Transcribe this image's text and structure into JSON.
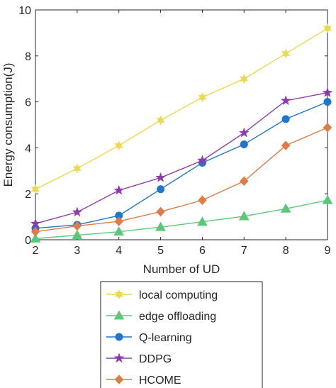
{
  "chart_data": {
    "type": "line",
    "title": "",
    "xlabel": "Number of UD",
    "ylabel": "Energy consumption(J)",
    "xlim": [
      2,
      9
    ],
    "ylim": [
      0,
      10
    ],
    "x_ticks": [
      "2",
      "3",
      "4",
      "5",
      "6",
      "7",
      "8",
      "9"
    ],
    "y_ticks": [
      "0",
      "2",
      "4",
      "6",
      "8",
      "10"
    ],
    "x": [
      2,
      3,
      4,
      5,
      6,
      7,
      8,
      9
    ],
    "grid": false,
    "legend_position": "below",
    "series": [
      {
        "name": "local computing",
        "color": "#edd94f",
        "marker": "hexagram",
        "values": [
          2.2,
          3.1,
          4.1,
          5.2,
          6.2,
          7.0,
          8.1,
          9.2
        ]
      },
      {
        "name": "edge offloading",
        "color": "#5bc879",
        "marker": "triangle",
        "values": [
          0.05,
          0.2,
          0.35,
          0.55,
          0.78,
          1.02,
          1.35,
          1.72
        ]
      },
      {
        "name": "Q-learning",
        "color": "#1f77c8",
        "marker": "circle",
        "values": [
          0.5,
          0.65,
          1.05,
          2.2,
          3.35,
          4.15,
          5.25,
          6.0
        ]
      },
      {
        "name": "DDPG",
        "color": "#8e3aad",
        "marker": "pentagram",
        "values": [
          0.7,
          1.2,
          2.15,
          2.7,
          3.45,
          4.65,
          6.05,
          6.4
        ]
      },
      {
        "name": "HCOME",
        "color": "#e07b45",
        "marker": "diamond",
        "values": [
          0.35,
          0.6,
          0.8,
          1.22,
          1.72,
          2.55,
          4.1,
          4.88
        ]
      }
    ]
  }
}
